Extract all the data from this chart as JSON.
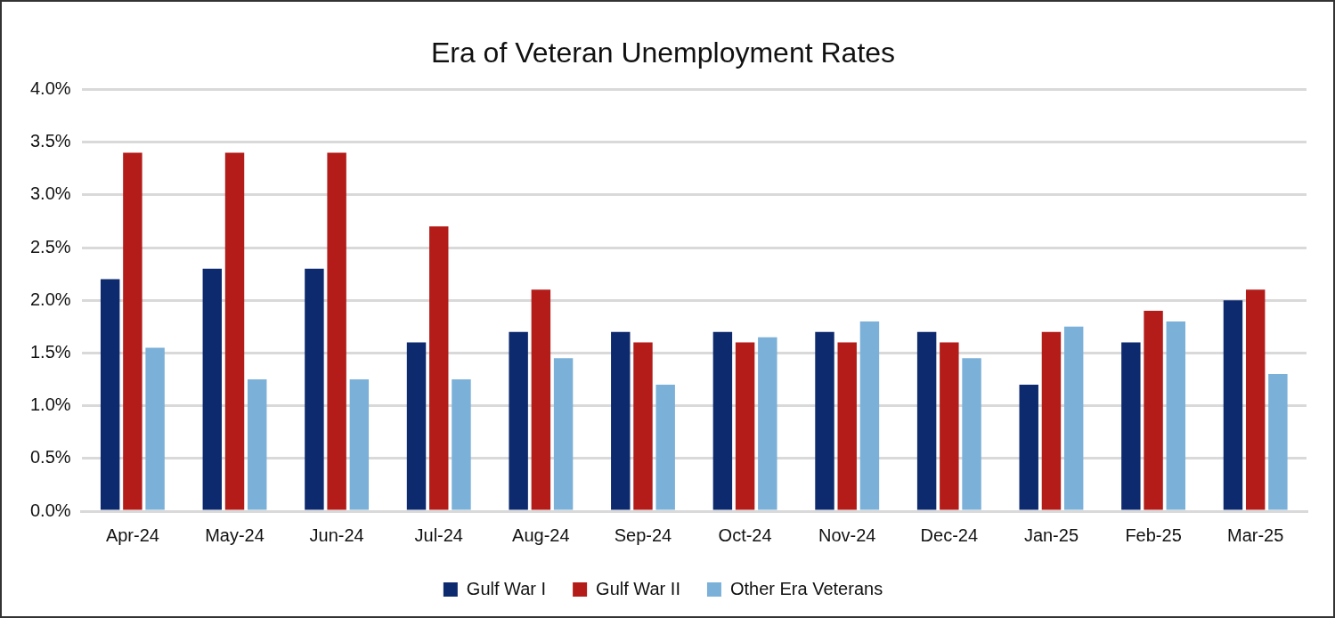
{
  "chart_data": {
    "type": "bar",
    "title": "Era of Veteran Unemployment Rates",
    "categories": [
      "Apr-24",
      "May-24",
      "Jun-24",
      "Jul-24",
      "Aug-24",
      "Sep-24",
      "Oct-24",
      "Nov-24",
      "Dec-24",
      "Jan-25",
      "Feb-25",
      "Mar-25"
    ],
    "series": [
      {
        "name": "Gulf War I",
        "color": "#0e2a6e",
        "values": [
          2.2,
          2.3,
          2.3,
          1.6,
          1.7,
          1.7,
          1.7,
          1.7,
          1.7,
          1.2,
          1.6,
          2.0
        ]
      },
      {
        "name": "Gulf War II",
        "color": "#b31c19",
        "values": [
          3.4,
          3.4,
          3.4,
          2.7,
          2.1,
          1.6,
          1.6,
          1.6,
          1.6,
          1.7,
          1.9,
          2.1
        ]
      },
      {
        "name": "Other Era Veterans",
        "color": "#7bb0d8",
        "values": [
          1.55,
          1.25,
          1.25,
          1.25,
          1.45,
          1.2,
          1.65,
          1.8,
          1.45,
          1.75,
          1.8,
          1.3
        ]
      }
    ],
    "ylim": [
      0,
      4
    ],
    "yticks": [
      {
        "value": 0,
        "label": "0.0%"
      },
      {
        "value": 0.5,
        "label": "0.5%"
      },
      {
        "value": 1,
        "label": "1.0%"
      },
      {
        "value": 1.5,
        "label": "1.5%"
      },
      {
        "value": 2,
        "label": "2.0%"
      },
      {
        "value": 2.5,
        "label": "2.5%"
      },
      {
        "value": 3,
        "label": "3.0%"
      },
      {
        "value": 3.5,
        "label": "3.5%"
      },
      {
        "value": 4,
        "label": "4.0%"
      }
    ],
    "grid": "y",
    "legend": "bottom"
  }
}
